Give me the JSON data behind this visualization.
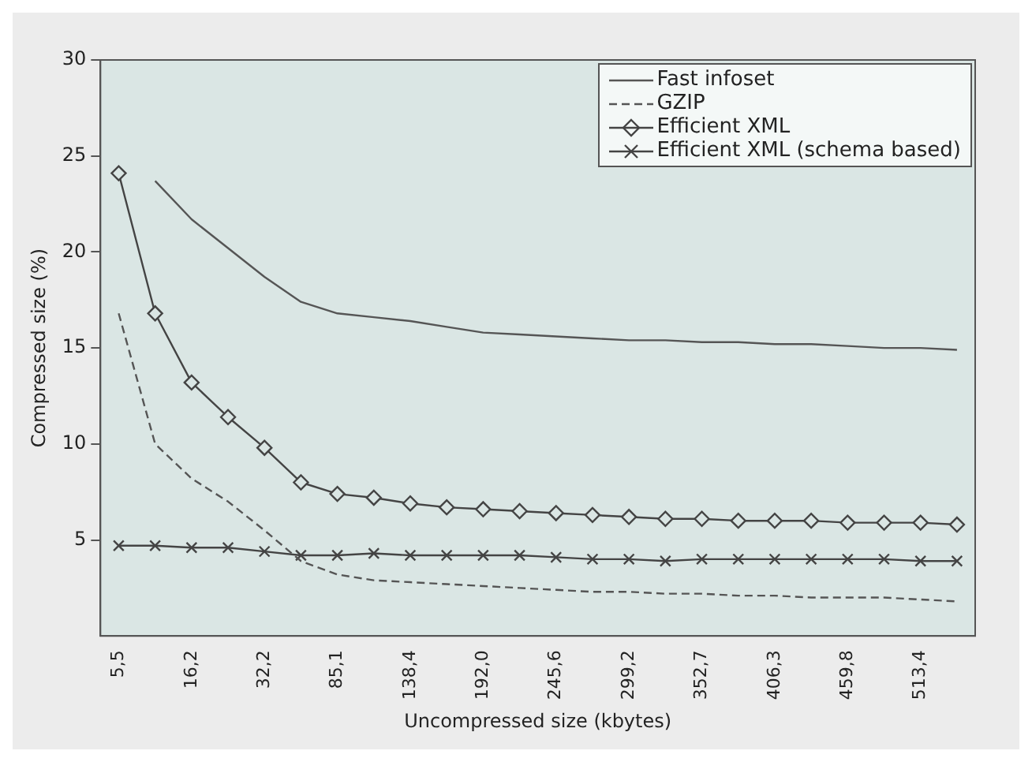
{
  "chart_data": {
    "type": "line",
    "xlabel": "Uncompressed size (kbytes)",
    "ylabel": "Compressed size (%)",
    "categories": [
      "5,5",
      null,
      "16,2",
      null,
      "32,2",
      null,
      "85,1",
      null,
      "138,4",
      null,
      "192,0",
      null,
      "245,6",
      null,
      "299,2",
      null,
      "352,7",
      null,
      "406,3",
      null,
      "459,8",
      null,
      "513,4",
      null
    ],
    "ylim": [
      0,
      30
    ],
    "yticks": [
      5,
      10,
      15,
      20,
      25,
      30
    ],
    "grid": false,
    "legend": "top right",
    "series": [
      {
        "name": "Fast infoset",
        "color": "#555555",
        "marker": "none",
        "line_style": "solid",
        "values": [
          null,
          23.7,
          21.7,
          20.2,
          18.7,
          17.4,
          16.8,
          16.6,
          16.4,
          16.1,
          15.8,
          15.7,
          15.6,
          15.5,
          15.4,
          15.4,
          15.3,
          15.3,
          15.2,
          15.2,
          15.1,
          15.0,
          15.0,
          14.9
        ]
      },
      {
        "name": "GZIP",
        "color": "#555555",
        "marker": "none",
        "line_style": "dashed",
        "values": [
          16.8,
          10.0,
          8.2,
          7.0,
          5.5,
          3.9,
          3.2,
          2.9,
          2.8,
          2.7,
          2.6,
          2.5,
          2.4,
          2.3,
          2.3,
          2.2,
          2.2,
          2.1,
          2.1,
          2.0,
          2.0,
          2.0,
          1.9,
          1.8
        ]
      },
      {
        "name": "Efficient XML",
        "color": "#444444",
        "marker": "diamond",
        "line_style": "solid",
        "values": [
          24.1,
          16.8,
          13.2,
          11.4,
          9.8,
          8.0,
          7.4,
          7.2,
          6.9,
          6.7,
          6.6,
          6.5,
          6.4,
          6.3,
          6.2,
          6.1,
          6.1,
          6.0,
          6.0,
          6.0,
          5.9,
          5.9,
          5.9,
          5.8
        ]
      },
      {
        "name": "Efficient XML (schema based)",
        "color": "#444444",
        "marker": "cross",
        "line_style": "solid",
        "values": [
          4.7,
          4.7,
          4.6,
          4.6,
          4.4,
          4.2,
          4.2,
          4.3,
          4.2,
          4.2,
          4.2,
          4.2,
          4.1,
          4.0,
          4.0,
          3.9,
          4.0,
          4.0,
          4.0,
          4.0,
          4.0,
          4.0,
          3.9,
          3.9
        ]
      }
    ]
  }
}
